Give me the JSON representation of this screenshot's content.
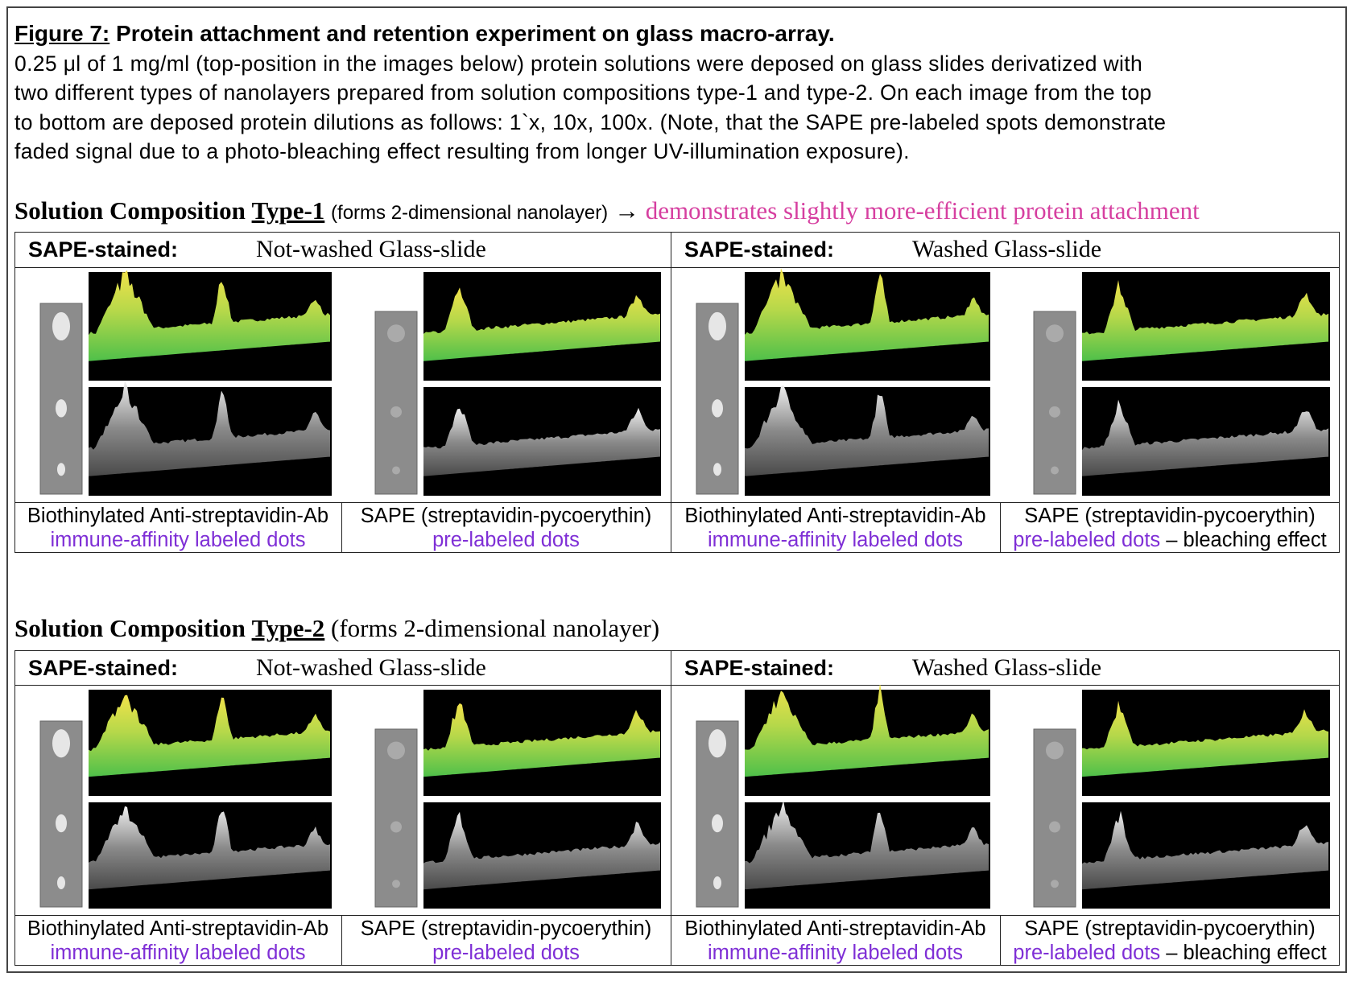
{
  "figure": {
    "label": "Figure 7:",
    "title": "Protein attachment and retention experiment on glass macro-array.",
    "caption_lines": [
      "0.25 μl of 1 mg/ml (top-position in the images below) protein solutions were deposed on glass slides derivatized with",
      "two different types of nanolayers prepared from solution compositions type-1 and type-2. On each image from the top",
      "to bottom are deposed protein dilutions as follows: 1`x, 10x, 100x. (Note, that the SAPE pre-labeled spots demonstrate",
      "faded signal due to a photo-bleaching effect resulting from longer UV-illumination exposure)."
    ]
  },
  "sections": [
    {
      "heading": {
        "prefix": "Solution Composition",
        "type": "Type-1",
        "paren": "(forms 2-dimensional nanolayer)",
        "arrow": "→",
        "note": "demonstrates slightly more-efficient protein attachment"
      },
      "table": {
        "headers": [
          {
            "label": "SAPE-stained:",
            "condition": "Not-washed Glass-slide"
          },
          {
            "label": "SAPE-stained:",
            "condition": "Washed Glass-slide"
          }
        ],
        "captions": [
          {
            "line1": "Biothinylated Anti-streptavidin-Ab",
            "line2": "immune-affinity labeled dots"
          },
          {
            "line1": "SAPE (streptavidin-pycoerythin)",
            "line2": "pre-labeled dots"
          },
          {
            "line1": "Biothinylated Anti-streptavidin-Ab",
            "line2": "immune-affinity labeled dots"
          },
          {
            "line1": "SAPE (streptavidin-pycoerythin)",
            "line2": "pre-labeled dots",
            "suffix": "– bleaching effect"
          }
        ]
      }
    },
    {
      "heading": {
        "prefix": "Solution Composition",
        "type": "Type-2",
        "paren": "(forms 2-dimensional nanolayer)"
      },
      "table": {
        "headers": [
          {
            "label": "SAPE-stained:",
            "condition": "Not-washed Glass-slide"
          },
          {
            "label": "SAPE-stained:",
            "condition": "Washed Glass-slide"
          }
        ],
        "captions": [
          {
            "line1": "Biothinylated Anti-streptavidin-Ab",
            "line2": "immune-affinity labeled dots"
          },
          {
            "line1": "SAPE (streptavidin-pycoerythin)",
            "line2": "pre-labeled dots"
          },
          {
            "line1": "Biothinylated Anti-streptavidin-Ab",
            "line2": "immune-affinity labeled dots"
          },
          {
            "line1": "SAPE (streptavidin-pycoerythin)",
            "line2": "pre-labeled dots",
            "suffix": "– bleaching effect"
          }
        ]
      }
    }
  ]
}
